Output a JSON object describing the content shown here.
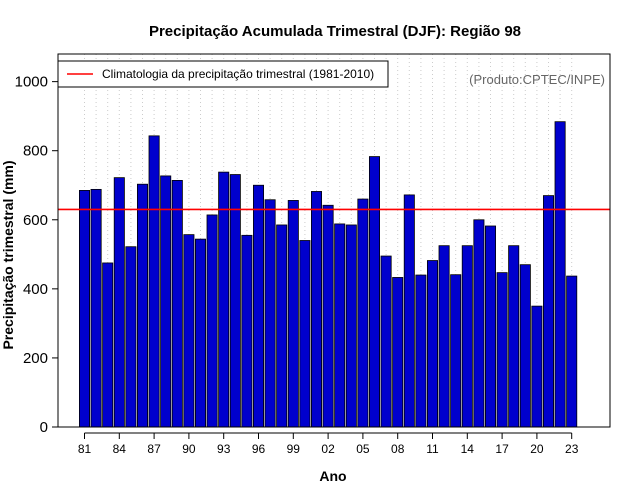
{
  "chart_data": {
    "type": "bar",
    "title": "Precipitação Acumulada Trimestral (DJF): Região 98",
    "xlabel": "Ano",
    "ylabel": "Precipitação trimestral (mm)",
    "ylim": [
      0,
      1080
    ],
    "yticks": [
      0,
      200,
      400,
      600,
      800,
      1000
    ],
    "categories": [
      "81",
      "82",
      "83",
      "84",
      "85",
      "86",
      "87",
      "88",
      "89",
      "90",
      "91",
      "92",
      "93",
      "94",
      "95",
      "96",
      "97",
      "98",
      "99",
      "00",
      "01",
      "02",
      "03",
      "04",
      "05",
      "06",
      "07",
      "08",
      "09",
      "10",
      "11",
      "12",
      "13",
      "14",
      "15",
      "16",
      "17",
      "18",
      "19",
      "20",
      "21",
      "22",
      "23"
    ],
    "xtick_labels": [
      "81",
      "84",
      "87",
      "90",
      "93",
      "96",
      "99",
      "02",
      "05",
      "08",
      "11",
      "14",
      "17",
      "20",
      "23"
    ],
    "values": [
      685,
      688,
      475,
      722,
      522,
      703,
      843,
      727,
      714,
      557,
      544,
      614,
      738,
      731,
      555,
      700,
      658,
      585,
      656,
      540,
      682,
      642,
      588,
      585,
      660,
      783,
      495,
      433,
      672,
      440,
      482,
      525,
      441,
      525,
      600,
      582,
      447,
      525,
      470,
      350,
      670,
      884,
      437
    ],
    "climatology": 630,
    "legend": {
      "label": "Climatologia da precipitação trimestral (1981-2010)",
      "position": "top-left"
    },
    "grid": "vertical-dotted",
    "colors": {
      "bar": "#0000cd",
      "bar_edge": "#000000",
      "climatology": "#ff0000",
      "grid": "#cccccc"
    },
    "credit": "(Produto:CPTEC/INPE)"
  }
}
